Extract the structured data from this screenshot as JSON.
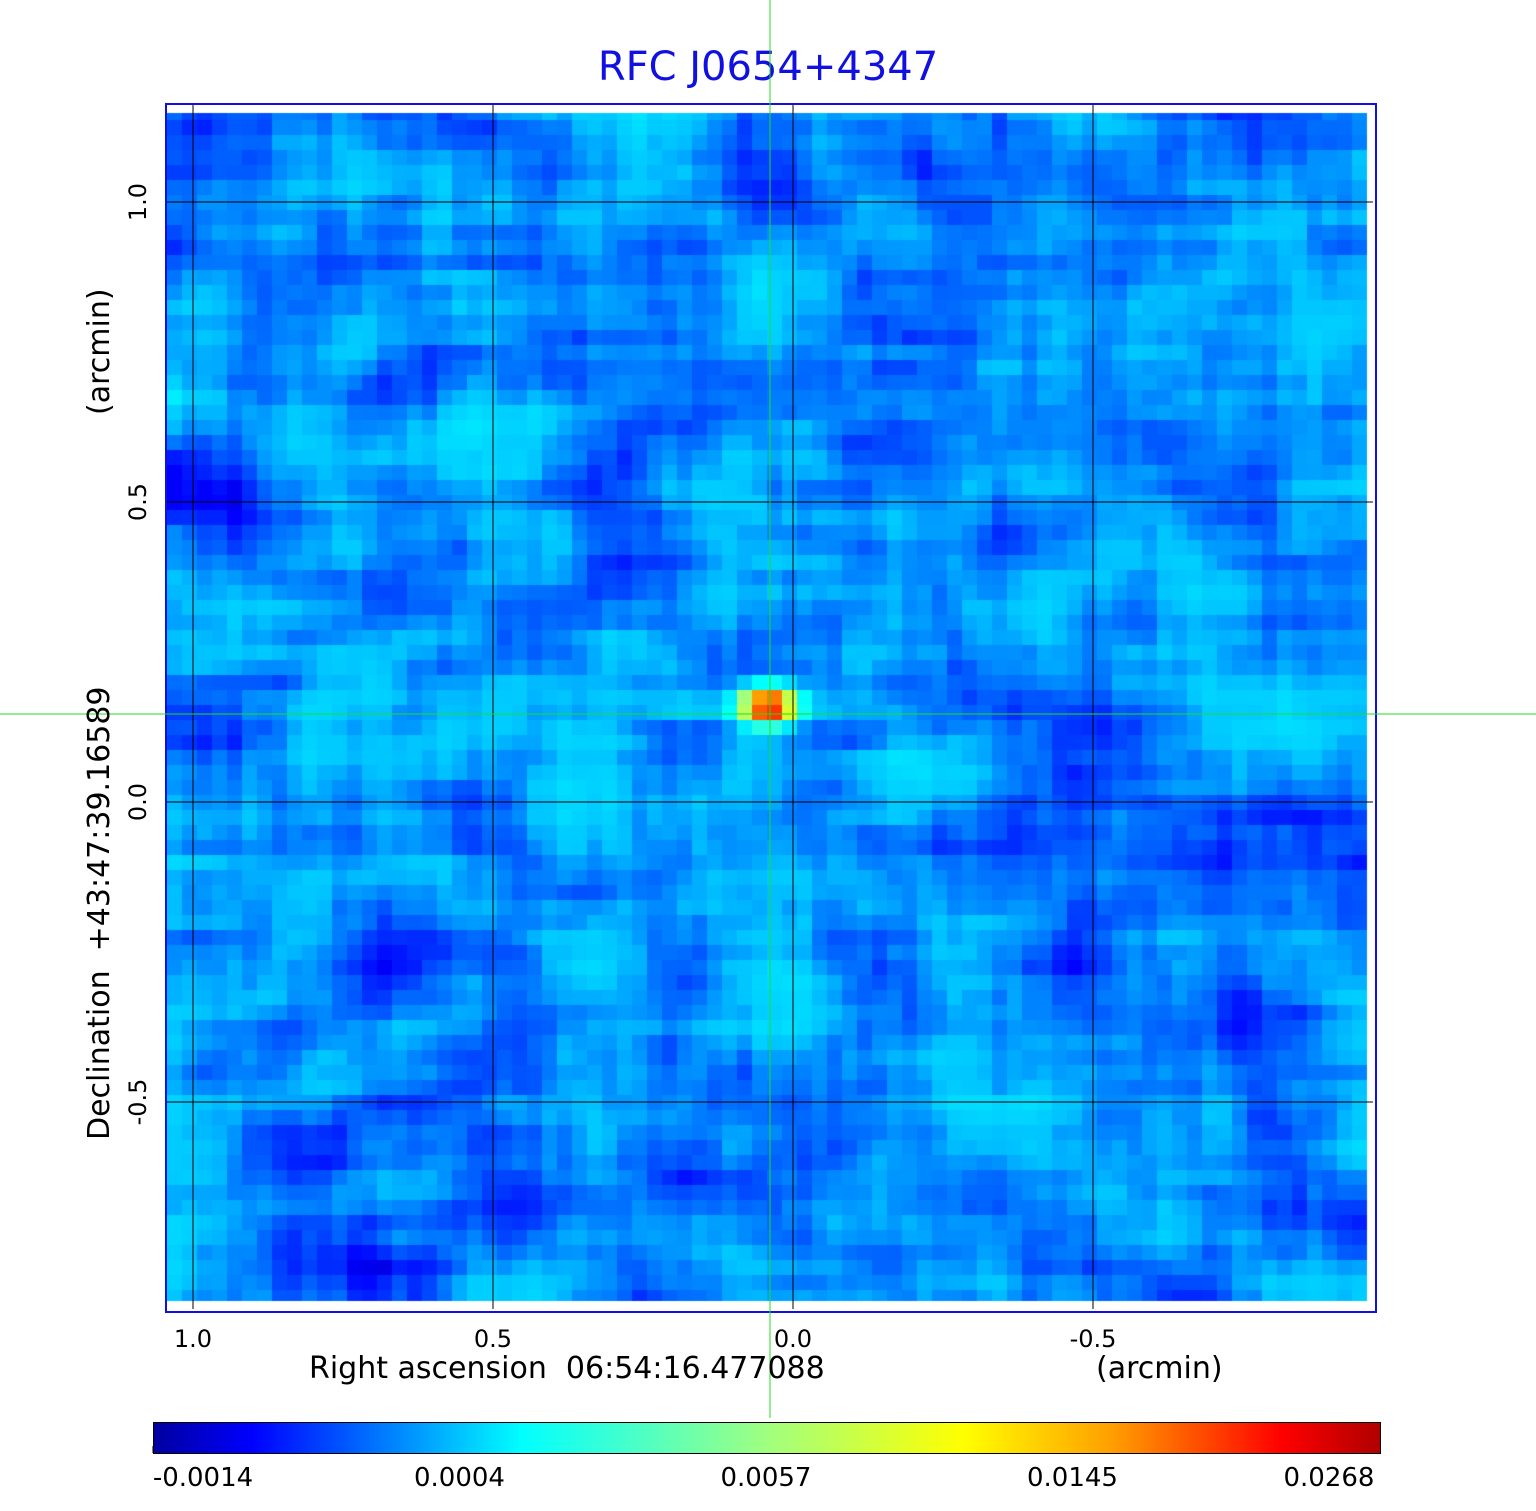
{
  "chart_data": {
    "type": "heatmap",
    "title": "RFC J0654+4347",
    "xlabel": "Right ascension  06:54:16.477088",
    "xlabel_unit": "(arcmin)",
    "ylabel": "Declination  +43:47:39.16589",
    "ylabel_unit": "(arcmin)",
    "xticks": [
      "1.0",
      "0.5",
      "0.0",
      "-0.5"
    ],
    "xtick_values": [
      1.0,
      0.5,
      0.0,
      -0.5
    ],
    "yticks": [
      "1.0",
      "0.5",
      "0.0",
      "-0.5"
    ],
    "ytick_values": [
      1.0,
      0.5,
      0.0,
      -0.5
    ],
    "xlim": [
      1.05,
      -0.97
    ],
    "ylim": [
      -0.85,
      1.17
    ],
    "x_reversed": true,
    "grid": true,
    "colormap": "jet",
    "colorbar": {
      "placement": "bottom",
      "ticks": [
        "-0.0014",
        "0.0004",
        "0.0057",
        "0.0145",
        "0.0268"
      ],
      "tick_values": [
        -0.0014,
        0.0004,
        0.0057,
        0.0145,
        0.0268
      ]
    },
    "source_peak": {
      "x": 0.04,
      "y": 0.16,
      "value": 0.0268
    },
    "crosshair": {
      "x": 0.04,
      "y": 0.15,
      "color": "#22dd22"
    },
    "colors": {
      "title": "#1010e0",
      "frame": "#1010e0",
      "grid": "#000000"
    }
  }
}
